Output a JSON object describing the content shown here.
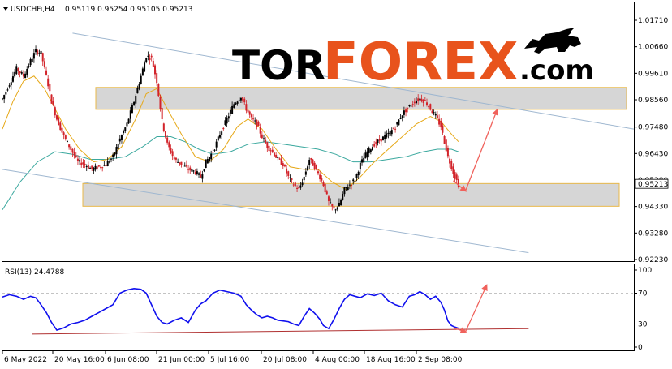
{
  "chart_data": [
    {
      "type": "candlestick",
      "header": {
        "symbol_label": "USDCHFi,H4",
        "values_label": "0.95119 0.95254 0.95105 0.95213"
      },
      "last_price_label": "0.95213",
      "y_ticks": [
        "1.01710",
        "1.00660",
        "0.99610",
        "0.98560",
        "0.97480",
        "0.96430",
        "0.95380",
        "0.94330",
        "0.93280",
        "0.92230"
      ],
      "ylim": [
        0.9223,
        1.0171
      ],
      "x_ticks": [
        "6 May 2022",
        "20 May 16:00",
        "6 Jun 08:00",
        "21 Jun 00:00",
        "5 Jul 16:00",
        "20 Jul 08:00",
        "4 Aug 00:00",
        "18 Aug 16:00",
        "2 Sep 08:00"
      ],
      "close_path": [
        [
          0,
          0.986
        ],
        [
          4,
          0.992
        ],
        [
          8,
          0.998
        ],
        [
          12,
          0.995
        ],
        [
          16,
          1.001
        ],
        [
          19,
          1.005
        ],
        [
          22,
          1.004
        ],
        [
          25,
          0.995
        ],
        [
          28,
          0.985
        ],
        [
          31,
          0.978
        ],
        [
          35,
          0.971
        ],
        [
          39,
          0.966
        ],
        [
          43,
          0.961
        ],
        [
          47,
          0.96
        ],
        [
          51,
          0.958
        ],
        [
          55,
          0.959
        ],
        [
          59,
          0.96
        ],
        [
          63,
          0.963
        ],
        [
          67,
          0.97
        ],
        [
          71,
          0.976
        ],
        [
          75,
          0.985
        ],
        [
          79,
          0.995
        ],
        [
          82,
          1.003
        ],
        [
          85,
          1.002
        ],
        [
          88,
          0.993
        ],
        [
          91,
          0.977
        ],
        [
          94,
          0.968
        ],
        [
          98,
          0.962
        ],
        [
          102,
          0.96
        ],
        [
          106,
          0.958
        ],
        [
          110,
          0.957
        ],
        [
          113,
          0.955
        ],
        [
          116,
          0.961
        ],
        [
          120,
          0.965
        ],
        [
          124,
          0.972
        ],
        [
          128,
          0.978
        ],
        [
          132,
          0.984
        ],
        [
          136,
          0.987
        ],
        [
          139,
          0.982
        ],
        [
          142,
          0.978
        ],
        [
          145,
          0.976
        ],
        [
          148,
          0.971
        ],
        [
          151,
          0.967
        ],
        [
          154,
          0.965
        ],
        [
          157,
          0.962
        ],
        [
          160,
          0.96
        ],
        [
          163,
          0.955
        ],
        [
          166,
          0.952
        ],
        [
          169,
          0.95
        ],
        [
          172,
          0.955
        ],
        [
          175,
          0.962
        ],
        [
          178,
          0.959
        ],
        [
          181,
          0.955
        ],
        [
          183,
          0.952
        ],
        [
          186,
          0.945
        ],
        [
          189,
          0.942
        ],
        [
          192,
          0.944
        ],
        [
          195,
          0.95
        ],
        [
          198,
          0.952
        ],
        [
          201,
          0.954
        ],
        [
          204,
          0.96
        ],
        [
          208,
          0.965
        ],
        [
          212,
          0.968
        ],
        [
          216,
          0.97
        ],
        [
          220,
          0.972
        ],
        [
          224,
          0.975
        ],
        [
          228,
          0.98
        ],
        [
          232,
          0.983
        ],
        [
          235,
          0.985
        ],
        [
          238,
          0.986
        ],
        [
          241,
          0.985
        ],
        [
          244,
          0.982
        ],
        [
          247,
          0.979
        ],
        [
          250,
          0.975
        ],
        [
          252,
          0.969
        ],
        [
          254,
          0.963
        ],
        [
          256,
          0.959
        ],
        [
          258,
          0.955
        ],
        [
          260,
          0.9521
        ]
      ],
      "ma_yellow": [
        [
          0,
          0.974
        ],
        [
          6,
          0.985
        ],
        [
          12,
          0.993
        ],
        [
          18,
          0.995
        ],
        [
          24,
          0.99
        ],
        [
          30,
          0.982
        ],
        [
          36,
          0.974
        ],
        [
          44,
          0.966
        ],
        [
          52,
          0.961
        ],
        [
          60,
          0.962
        ],
        [
          68,
          0.967
        ],
        [
          76,
          0.978
        ],
        [
          82,
          0.988
        ],
        [
          88,
          0.99
        ],
        [
          94,
          0.982
        ],
        [
          102,
          0.972
        ],
        [
          110,
          0.963
        ],
        [
          118,
          0.961
        ],
        [
          126,
          0.966
        ],
        [
          134,
          0.975
        ],
        [
          140,
          0.978
        ],
        [
          148,
          0.974
        ],
        [
          156,
          0.966
        ],
        [
          164,
          0.959
        ],
        [
          172,
          0.958
        ],
        [
          180,
          0.958
        ],
        [
          188,
          0.953
        ],
        [
          196,
          0.95
        ],
        [
          204,
          0.955
        ],
        [
          212,
          0.961
        ],
        [
          220,
          0.966
        ],
        [
          228,
          0.971
        ],
        [
          236,
          0.976
        ],
        [
          244,
          0.979
        ],
        [
          250,
          0.977
        ],
        [
          256,
          0.972
        ],
        [
          260,
          0.969
        ]
      ],
      "ma_teal": [
        [
          0,
          0.942
        ],
        [
          10,
          0.953
        ],
        [
          20,
          0.961
        ],
        [
          30,
          0.965
        ],
        [
          40,
          0.964
        ],
        [
          50,
          0.962
        ],
        [
          60,
          0.962
        ],
        [
          70,
          0.963
        ],
        [
          80,
          0.967
        ],
        [
          88,
          0.971
        ],
        [
          96,
          0.971
        ],
        [
          104,
          0.969
        ],
        [
          112,
          0.966
        ],
        [
          120,
          0.964
        ],
        [
          130,
          0.965
        ],
        [
          140,
          0.968
        ],
        [
          150,
          0.969
        ],
        [
          160,
          0.968
        ],
        [
          170,
          0.967
        ],
        [
          180,
          0.966
        ],
        [
          190,
          0.964
        ],
        [
          200,
          0.961
        ],
        [
          210,
          0.961
        ],
        [
          220,
          0.962
        ],
        [
          230,
          0.963
        ],
        [
          240,
          0.965
        ],
        [
          248,
          0.966
        ],
        [
          256,
          0.966
        ],
        [
          260,
          0.965
        ]
      ],
      "channel_upper": [
        [
          40,
          1.012
        ],
        [
          360,
          0.974
        ]
      ],
      "channel_lower": [
        [
          0,
          0.958
        ],
        [
          300,
          0.925
        ]
      ],
      "resistance_zone": [
        0.9818,
        0.9905
      ],
      "support_zone": [
        0.9434,
        0.9524
      ],
      "forecast_arrows": [
        [
          [
            257,
            0.9535
          ],
          [
            264,
            0.9495
          ]
        ],
        [
          [
            264,
            0.9495
          ],
          [
            282,
            0.9815
          ]
        ]
      ],
      "rsi": {
        "label": "RSI(13) 24.4788",
        "y_ticks": [
          "100",
          "70",
          "30",
          "0"
        ],
        "ylim": [
          0,
          100
        ],
        "levels": [
          70,
          30
        ],
        "path": [
          [
            0,
            65
          ],
          [
            4,
            68
          ],
          [
            8,
            66
          ],
          [
            12,
            62
          ],
          [
            16,
            66
          ],
          [
            19,
            64
          ],
          [
            22,
            55
          ],
          [
            25,
            45
          ],
          [
            28,
            32
          ],
          [
            31,
            22
          ],
          [
            35,
            25
          ],
          [
            39,
            30
          ],
          [
            43,
            32
          ],
          [
            47,
            35
          ],
          [
            51,
            40
          ],
          [
            55,
            45
          ],
          [
            59,
            50
          ],
          [
            63,
            55
          ],
          [
            67,
            70
          ],
          [
            71,
            74
          ],
          [
            75,
            76
          ],
          [
            79,
            75
          ],
          [
            82,
            70
          ],
          [
            85,
            55
          ],
          [
            88,
            40
          ],
          [
            91,
            32
          ],
          [
            94,
            30
          ],
          [
            98,
            35
          ],
          [
            102,
            38
          ],
          [
            106,
            32
          ],
          [
            110,
            48
          ],
          [
            113,
            56
          ],
          [
            116,
            60
          ],
          [
            120,
            70
          ],
          [
            124,
            74
          ],
          [
            128,
            72
          ],
          [
            132,
            70
          ],
          [
            136,
            66
          ],
          [
            139,
            55
          ],
          [
            142,
            48
          ],
          [
            145,
            42
          ],
          [
            148,
            38
          ],
          [
            151,
            40
          ],
          [
            154,
            38
          ],
          [
            157,
            35
          ],
          [
            160,
            34
          ],
          [
            163,
            33
          ],
          [
            166,
            30
          ],
          [
            169,
            28
          ],
          [
            172,
            40
          ],
          [
            175,
            50
          ],
          [
            178,
            44
          ],
          [
            181,
            36
          ],
          [
            183,
            28
          ],
          [
            186,
            24
          ],
          [
            189,
            36
          ],
          [
            192,
            50
          ],
          [
            195,
            62
          ],
          [
            198,
            68
          ],
          [
            201,
            66
          ],
          [
            204,
            64
          ],
          [
            208,
            69
          ],
          [
            212,
            67
          ],
          [
            216,
            70
          ],
          [
            220,
            60
          ],
          [
            224,
            55
          ],
          [
            228,
            52
          ],
          [
            232,
            66
          ],
          [
            235,
            68
          ],
          [
            238,
            72
          ],
          [
            241,
            68
          ],
          [
            244,
            62
          ],
          [
            247,
            66
          ],
          [
            250,
            58
          ],
          [
            252,
            48
          ],
          [
            254,
            34
          ],
          [
            256,
            28
          ],
          [
            258,
            26
          ],
          [
            260,
            24.48
          ]
        ],
        "trend_line": [
          [
            0,
            17
          ],
          [
            300,
            24
          ]
        ],
        "forecast_arrows": [
          [
            [
              257,
              25
            ],
            [
              264,
              20
            ]
          ],
          [
            [
              264,
              20
            ],
            [
              276,
              80
            ]
          ]
        ]
      }
    }
  ],
  "watermark": {
    "part1": "TOR",
    "part2": "FOREX",
    "part3": ".com",
    "color1": "#000000",
    "color2": "#e8531c",
    "icon": "bull-icon"
  },
  "colors": {
    "bull_candle": "#000000",
    "bear_candle": "#d2232a",
    "ma_yellow": "#e6a817",
    "ma_teal": "#3aa89e",
    "channel": "#9fb7d0",
    "zone_fill": "#d6d6d6",
    "zone_border": "#e8b84a",
    "arrow": "#f0625c",
    "rsi_line": "#1010ee",
    "rsi_trend": "#b03030"
  }
}
